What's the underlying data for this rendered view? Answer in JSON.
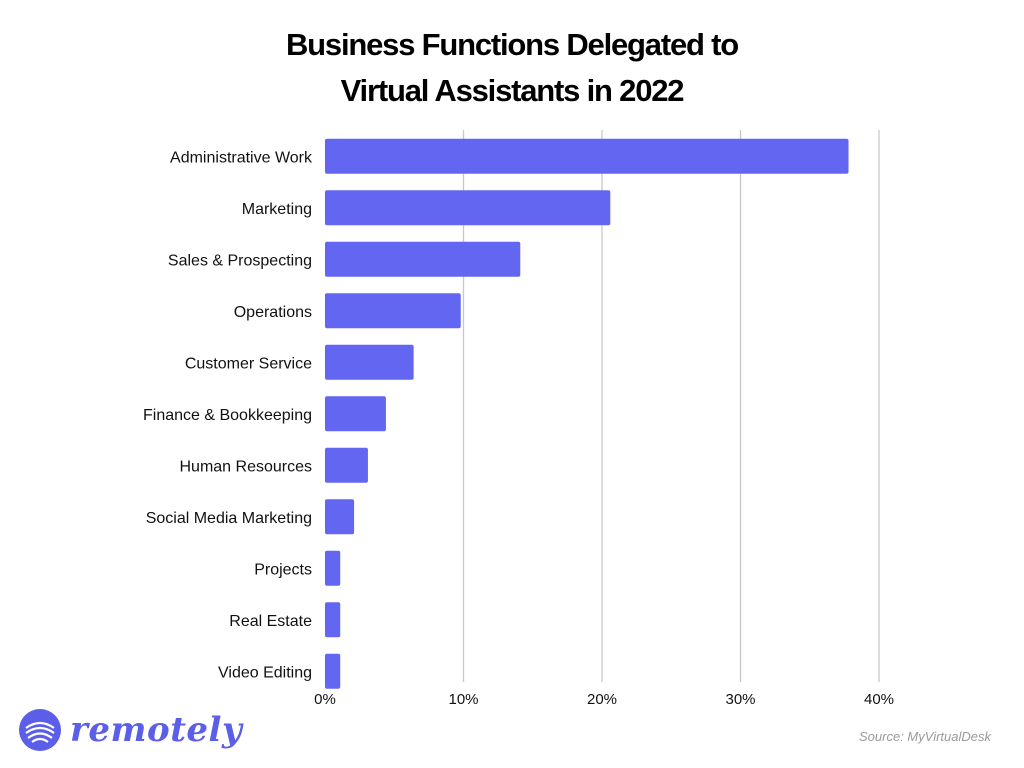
{
  "chart_data": {
    "type": "bar",
    "orientation": "horizontal",
    "title_lines": [
      "Business Functions Delegated to",
      "Virtual Assistants in 2022"
    ],
    "categories": [
      "Administrative Work",
      "Marketing",
      "Sales & Prospecting",
      "Operations",
      "Customer Service",
      "Finance & Bookkeeping",
      "Human Resources",
      "Social Media Marketing",
      "Projects",
      "Real Estate",
      "Video Editing"
    ],
    "values": [
      37.8,
      20.6,
      14.1,
      9.8,
      6.4,
      4.4,
      3.1,
      2.1,
      1.1,
      1.1,
      1.1
    ],
    "value_unit": "%",
    "xlim": [
      0,
      40
    ],
    "x_ticks": [
      "0%",
      "10%",
      "20%",
      "30%",
      "40%"
    ],
    "grid": "vertical",
    "bar_color": "#6366f1",
    "grid_color": "#c8c8c8"
  },
  "brand": {
    "name": "remotely",
    "icon": "wave-globe-icon",
    "color": "#5a5ee8"
  },
  "source_text": "Source: MyVirtualDesk"
}
